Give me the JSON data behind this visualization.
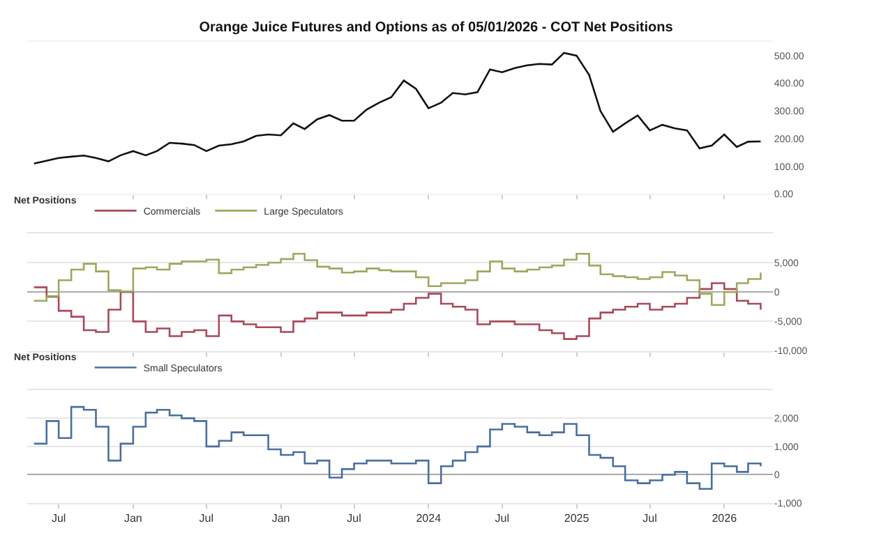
{
  "chart_data": [
    {
      "type": "line",
      "title": "Orange Juice Futures and Options as of 05/01/2026 - COT Net Positions",
      "x": [
        "2021-05",
        "2021-06",
        "2021-07",
        "2021-08",
        "2021-09",
        "2021-10",
        "2021-11",
        "2021-12",
        "2022-01",
        "2022-02",
        "2022-03",
        "2022-04",
        "2022-05",
        "2022-06",
        "2022-07",
        "2022-08",
        "2022-09",
        "2022-10",
        "2022-11",
        "2022-12",
        "2023-01",
        "2023-02",
        "2023-03",
        "2023-04",
        "2023-05",
        "2023-06",
        "2023-07",
        "2023-08",
        "2023-09",
        "2023-10",
        "2023-11",
        "2023-12",
        "2024-01",
        "2024-02",
        "2024-03",
        "2024-04",
        "2024-05",
        "2024-06",
        "2024-07",
        "2024-08",
        "2024-09",
        "2024-10",
        "2024-11",
        "2024-12",
        "2025-01",
        "2025-02",
        "2025-03",
        "2025-04",
        "2025-05",
        "2025-06",
        "2025-07",
        "2025-08",
        "2025-09",
        "2025-10",
        "2025-11",
        "2025-12",
        "2026-01",
        "2026-02",
        "2026-03",
        "2026-04"
      ],
      "series": [
        {
          "color": "#111111",
          "values": [
            110,
            120,
            130,
            135,
            139,
            130,
            118,
            140,
            155,
            140,
            155,
            185,
            182,
            177,
            155,
            175,
            180,
            190,
            210,
            215,
            212,
            255,
            235,
            270,
            285,
            265,
            265,
            305,
            330,
            350,
            410,
            380,
            310,
            330,
            365,
            360,
            368,
            450,
            440,
            455,
            465,
            470,
            468,
            510,
            500,
            430,
            300,
            225,
            255,
            284,
            230,
            250,
            237,
            230,
            165,
            175,
            215,
            170,
            189,
            190
          ]
        }
      ],
      "xlim": [
        "2021-04-15",
        "2026-05-01"
      ],
      "ylim": [
        0,
        550
      ],
      "xticks": [
        {
          "value": "2021-07",
          "label": null
        },
        {
          "value": "2022-01",
          "label": null
        },
        {
          "value": "2022-07",
          "label": null
        },
        {
          "value": "2023-01",
          "label": null
        },
        {
          "value": "2023-07",
          "label": null
        },
        {
          "value": "2024-01",
          "label": null
        },
        {
          "value": "2024-07",
          "label": null
        },
        {
          "value": "2025-01",
          "label": null
        },
        {
          "value": "2025-07",
          "label": null
        },
        {
          "value": "2026-01",
          "label": null
        }
      ],
      "yticks": [
        {
          "value": 0,
          "label": "0.00"
        },
        {
          "value": 100,
          "label": "100.00"
        },
        {
          "value": 200,
          "label": "200.00"
        },
        {
          "value": 300,
          "label": "300.00"
        },
        {
          "value": 400,
          "label": "400.00"
        },
        {
          "value": 500,
          "label": "500.00"
        }
      ],
      "tick_labels": "y",
      "grid": false
    },
    {
      "type": "step",
      "legend_title": "Net Positions",
      "legend": "top left",
      "x": [
        "2021-05",
        "2021-06",
        "2021-07",
        "2021-08",
        "2021-09",
        "2021-10",
        "2021-11",
        "2021-12",
        "2022-01",
        "2022-02",
        "2022-03",
        "2022-04",
        "2022-05",
        "2022-06",
        "2022-07",
        "2022-08",
        "2022-09",
        "2022-10",
        "2022-11",
        "2022-12",
        "2023-01",
        "2023-02",
        "2023-03",
        "2023-04",
        "2023-05",
        "2023-06",
        "2023-07",
        "2023-08",
        "2023-09",
        "2023-10",
        "2023-11",
        "2023-12",
        "2024-01",
        "2024-02",
        "2024-03",
        "2024-04",
        "2024-05",
        "2024-06",
        "2024-07",
        "2024-08",
        "2024-09",
        "2024-10",
        "2024-11",
        "2024-12",
        "2025-01",
        "2025-02",
        "2025-03",
        "2025-04",
        "2025-05",
        "2025-06",
        "2025-07",
        "2025-08",
        "2025-09",
        "2025-10",
        "2025-11",
        "2025-12",
        "2026-01",
        "2026-02",
        "2026-03",
        "2026-04"
      ],
      "series": [
        {
          "name": "Commercials",
          "color": "#a8495a",
          "values": [
            800,
            -800,
            -3200,
            -4200,
            -6500,
            -6800,
            -3000,
            0,
            -5000,
            -6800,
            -6200,
            -7500,
            -6800,
            -6500,
            -7500,
            -4000,
            -5000,
            -5500,
            -6000,
            -6000,
            -6800,
            -5000,
            -4500,
            -3500,
            -3500,
            -4000,
            -4000,
            -3500,
            -3500,
            -3000,
            -2000,
            -1000,
            -300,
            -2000,
            -2500,
            -3000,
            -5500,
            -5000,
            -5000,
            -5500,
            -5500,
            -6500,
            -7000,
            -8000,
            -7500,
            -4500,
            -3500,
            -3000,
            -2500,
            -2000,
            -3000,
            -2500,
            -2000,
            -1000,
            500,
            1500,
            500,
            -1500,
            -2000,
            -3000
          ]
        },
        {
          "name": "Large Speculators",
          "color": "#98ab5c",
          "values": [
            -1500,
            -700,
            2000,
            3800,
            4800,
            3500,
            300,
            100,
            4000,
            4200,
            3800,
            4800,
            5200,
            5200,
            5500,
            3200,
            3800,
            4200,
            4600,
            5000,
            5600,
            6500,
            5400,
            4300,
            4000,
            3300,
            3500,
            4000,
            3700,
            3500,
            3500,
            2500,
            1000,
            1500,
            1500,
            2000,
            3500,
            5200,
            4000,
            3500,
            3800,
            4200,
            4500,
            5500,
            6500,
            4500,
            3000,
            2700,
            2500,
            2200,
            2500,
            3400,
            2800,
            2000,
            -300,
            -2200,
            0,
            1500,
            2200,
            3300
          ]
        }
      ],
      "xlim": [
        "2021-04-15",
        "2026-05-01"
      ],
      "ylim": [
        -10000,
        10000
      ],
      "xticks": [
        {
          "value": "2021-07",
          "label": null
        },
        {
          "value": "2022-01",
          "label": null
        },
        {
          "value": "2022-07",
          "label": null
        },
        {
          "value": "2023-01",
          "label": null
        },
        {
          "value": "2023-07",
          "label": null
        },
        {
          "value": "2024-01",
          "label": null
        },
        {
          "value": "2024-07",
          "label": null
        },
        {
          "value": "2025-01",
          "label": null
        },
        {
          "value": "2025-07",
          "label": null
        },
        {
          "value": "2026-01",
          "label": null
        }
      ],
      "yticks": [
        {
          "value": -10000,
          "label": "-10,000"
        },
        {
          "value": -5000,
          "label": "-5,000"
        },
        0,
        {
          "value": 5000,
          "label": "5,000"
        },
        {
          "value": 10000,
          "label": null
        }
      ],
      "tick_labels": "y",
      "grid": "y"
    },
    {
      "type": "step",
      "legend_title": "Net Positions",
      "legend": "top left",
      "x": [
        "2021-05",
        "2021-06",
        "2021-07",
        "2021-08",
        "2021-09",
        "2021-10",
        "2021-11",
        "2021-12",
        "2022-01",
        "2022-02",
        "2022-03",
        "2022-04",
        "2022-05",
        "2022-06",
        "2022-07",
        "2022-08",
        "2022-09",
        "2022-10",
        "2022-11",
        "2022-12",
        "2023-01",
        "2023-02",
        "2023-03",
        "2023-04",
        "2023-05",
        "2023-06",
        "2023-07",
        "2023-08",
        "2023-09",
        "2023-10",
        "2023-11",
        "2023-12",
        "2024-01",
        "2024-02",
        "2024-03",
        "2024-04",
        "2024-05",
        "2024-06",
        "2024-07",
        "2024-08",
        "2024-09",
        "2024-10",
        "2024-11",
        "2024-12",
        "2025-01",
        "2025-02",
        "2025-03",
        "2025-04",
        "2025-05",
        "2025-06",
        "2025-07",
        "2025-08",
        "2025-09",
        "2025-10",
        "2025-11",
        "2025-12",
        "2026-01",
        "2026-02",
        "2026-03",
        "2026-04"
      ],
      "series": [
        {
          "name": "Small Speculators",
          "color": "#4a6f9e",
          "values": [
            1100,
            1900,
            1300,
            2400,
            2300,
            1700,
            500,
            1100,
            1700,
            2200,
            2300,
            2100,
            2000,
            1900,
            1000,
            1200,
            1500,
            1400,
            1400,
            900,
            700,
            800,
            400,
            500,
            -100,
            200,
            400,
            500,
            500,
            400,
            400,
            500,
            -300,
            300,
            500,
            800,
            1000,
            1600,
            1800,
            1700,
            1500,
            1400,
            1500,
            1800,
            1400,
            700,
            600,
            300,
            -200,
            -300,
            -200,
            0,
            100,
            -300,
            -500,
            400,
            300,
            100,
            400,
            300
          ]
        }
      ],
      "xlim": [
        "2021-04-15",
        "2026-05-01"
      ],
      "ylim": [
        -1000,
        3000
      ],
      "xticks": [
        {
          "value": "2021-07",
          "label": "Jul"
        },
        {
          "value": "2022-01",
          "label": "Jan"
        },
        {
          "value": "2022-07",
          "label": "Jul"
        },
        {
          "value": "2023-01",
          "label": "Jan"
        },
        {
          "value": "2023-07",
          "label": "Jul"
        },
        {
          "value": "2024-01",
          "label": "2024"
        },
        {
          "value": "2024-07",
          "label": "Jul"
        },
        {
          "value": "2025-01",
          "label": "2025"
        },
        {
          "value": "2025-07",
          "label": "Jul"
        },
        {
          "value": "2026-01",
          "label": "2026"
        }
      ],
      "yticks": [
        {
          "value": -1000,
          "label": "-1,000"
        },
        0,
        {
          "value": 1000,
          "label": "1,000"
        },
        {
          "value": 2000,
          "label": "2,000"
        },
        {
          "value": 3000,
          "label": null
        }
      ],
      "grid": "y"
    }
  ]
}
